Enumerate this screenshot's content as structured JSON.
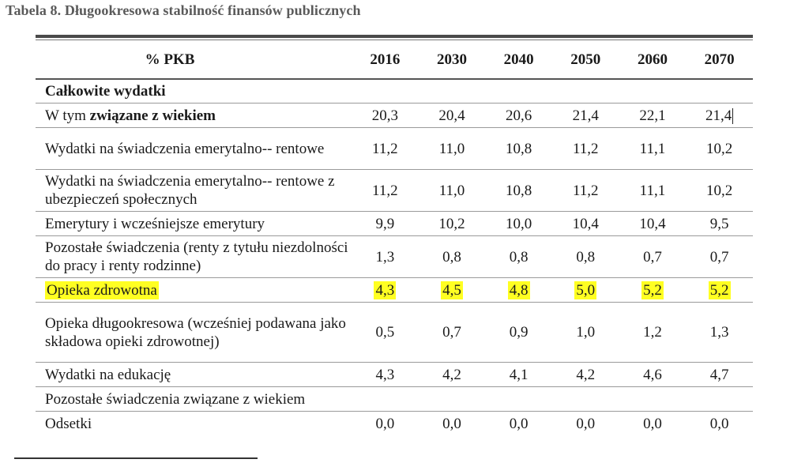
{
  "caption": "Tabela 8. Długookresowa stabilność finansów publicznych",
  "header": {
    "label": "% PKB",
    "years": [
      "2016",
      "2030",
      "2040",
      "2050",
      "2060",
      "2070"
    ]
  },
  "section_title": "Całkowite wydatki",
  "rows": [
    {
      "label_prefix": "W tym ",
      "label_bold": "związane z wiekiem",
      "values": [
        "20,3",
        "20,4",
        "20,6",
        "21,4",
        "22,1",
        "21,4"
      ],
      "highlight": false,
      "height": "h1"
    },
    {
      "label": "Wydatki na świadczenia emerytalno-- rentowe",
      "values": [
        "11,2",
        "11,0",
        "10,8",
        "11,2",
        "11,1",
        "10,2"
      ],
      "highlight": false,
      "height": "h2"
    },
    {
      "label": "Wydatki na świadczenia emerytalno-- rentowe z ubezpieczeń społecznych",
      "values": [
        "11,2",
        "11,0",
        "10,8",
        "11,2",
        "11,1",
        "10,2"
      ],
      "highlight": false,
      "height": "h2"
    },
    {
      "label": "Emerytury i wcześniejsze emerytury",
      "values": [
        "9,9",
        "10,2",
        "10,0",
        "10,4",
        "10,4",
        "9,5"
      ],
      "highlight": false,
      "height": "h1"
    },
    {
      "label": "Pozostałe świadczenia (renty z tytułu niezdolności do pracy i renty rodzinne)",
      "values": [
        "1,3",
        "0,8",
        "0,8",
        "0,8",
        "0,7",
        "0,7"
      ],
      "highlight": false,
      "height": "h2"
    },
    {
      "label": "Opieka zdrowotna",
      "values": [
        "4,3",
        "4,5",
        "4,8",
        "5,0",
        "5,2",
        "5,2"
      ],
      "highlight": true,
      "height": "h1"
    },
    {
      "label": "Opieka długookresowa (wcześniej podawana jako składowa opieki zdrowotnej)",
      "values": [
        "0,5",
        "0,7",
        "0,9",
        "1,0",
        "1,2",
        "1,3"
      ],
      "highlight": false,
      "height": "h3"
    },
    {
      "label": "Wydatki na edukację",
      "values": [
        "4,3",
        "4,2",
        "4,1",
        "4,2",
        "4,6",
        "4,7"
      ],
      "highlight": false,
      "height": "h1"
    },
    {
      "label": "Pozostałe świadczenia związane z wiekiem",
      "values": [
        "",
        "",
        "",
        "",
        "",
        ""
      ],
      "highlight": false,
      "height": "h1"
    },
    {
      "label": "Odsetki",
      "values": [
        "0,0",
        "0,0",
        "0,0",
        "0,0",
        "0,0",
        "0,0"
      ],
      "highlight": false,
      "height": "h1"
    }
  ],
  "colors": {
    "highlight": "#ffff22",
    "caption": "#5a5a5a"
  }
}
